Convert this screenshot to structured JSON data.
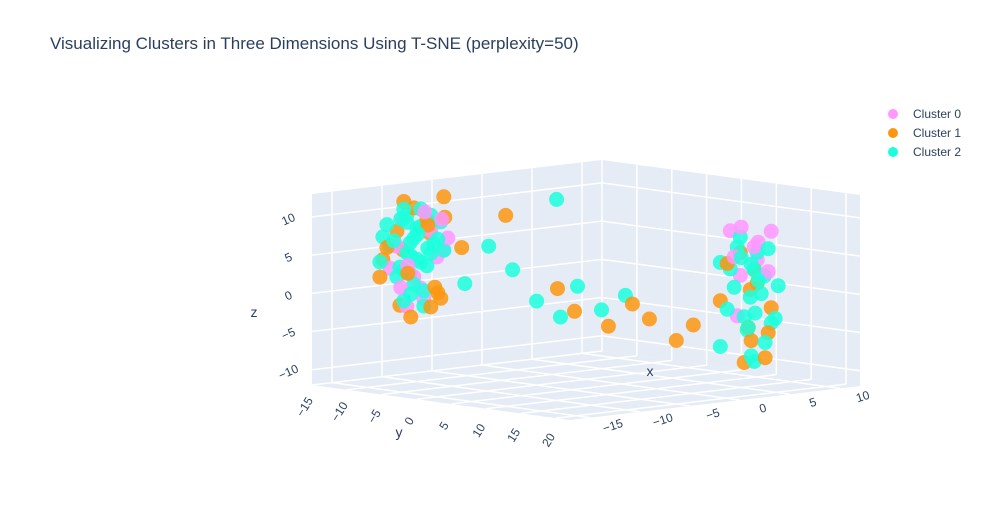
{
  "chart_data": {
    "type": "scatter",
    "projection": "3d",
    "title": "Visualizing Clusters in Three Dimensions Using T-SNE (perplexity=50)",
    "xlabel": "x",
    "ylabel": "y",
    "zlabel": "z",
    "x_ticks": [
      "−15",
      "−10",
      "−5",
      "0",
      "5",
      "10"
    ],
    "y_ticks": [
      "−15",
      "−10",
      "−5",
      "0",
      "5",
      "10",
      "15",
      "20"
    ],
    "z_ticks": [
      "−10",
      "−5",
      "0",
      "5",
      "10"
    ],
    "xlim": [
      -17,
      12
    ],
    "ylim": [
      -15,
      22
    ],
    "zlim": [
      -12,
      13
    ],
    "grid": true,
    "legend_position": "top-right",
    "series": [
      {
        "name": "Cluster 0",
        "color": "#ff97ff",
        "points": [
          [
            -12,
            -10,
            6
          ],
          [
            -11,
            -9,
            2
          ],
          [
            -10,
            -8,
            8
          ],
          [
            -13,
            -7,
            4
          ],
          [
            -9,
            -11,
            0
          ],
          [
            -12,
            -6,
            11
          ],
          [
            -11,
            -10,
            -2
          ],
          [
            -8,
            -9,
            5
          ],
          [
            -10,
            -12,
            9
          ],
          [
            -13,
            -8,
            1
          ],
          [
            -9,
            -7,
            7
          ],
          [
            -12,
            -11,
            3
          ],
          [
            -11,
            -5,
            10
          ],
          [
            -10,
            -9,
            -1
          ],
          [
            -8,
            -10,
            4
          ],
          [
            6,
            12,
            8
          ],
          [
            7,
            14,
            6
          ],
          [
            5,
            15,
            9
          ],
          [
            8,
            13,
            4
          ],
          [
            6,
            16,
            7
          ],
          [
            7,
            12,
            2
          ],
          [
            5,
            14,
            5
          ],
          [
            8,
            15,
            8
          ],
          [
            6,
            13,
            -3
          ],
          [
            7,
            16,
            3
          ]
        ]
      },
      {
        "name": "Cluster 1",
        "color": "#fc960f",
        "points": [
          [
            -12,
            -9,
            12
          ],
          [
            -11,
            -11,
            -2
          ],
          [
            -10,
            -6,
            10
          ],
          [
            -13,
            -10,
            6
          ],
          [
            -9,
            -8,
            -1
          ],
          [
            -12,
            -12,
            4
          ],
          [
            -10,
            -7,
            0
          ],
          [
            -11,
            -9,
            11
          ],
          [
            -8,
            -11,
            7
          ],
          [
            -13,
            -7,
            3
          ],
          [
            -9,
            -10,
            9
          ],
          [
            -12,
            -8,
            -3
          ],
          [
            -10,
            -12,
            5
          ],
          [
            -11,
            -6,
            1
          ],
          [
            -8,
            -9,
            12
          ],
          [
            -12,
            -10,
            8
          ],
          [
            -9,
            -5,
            6
          ],
          [
            -13,
            -11,
            2
          ],
          [
            -10,
            -8,
            -2
          ],
          [
            -11,
            -7,
            9
          ],
          [
            5,
            12,
            -1
          ],
          [
            7,
            14,
            3
          ],
          [
            6,
            15,
            -6
          ],
          [
            8,
            13,
            1
          ],
          [
            5,
            16,
            -4
          ],
          [
            7,
            12,
            5
          ],
          [
            6,
            17,
            -8
          ],
          [
            8,
            15,
            -2
          ],
          [
            5,
            13,
            4
          ],
          [
            7,
            16,
            -5
          ],
          [
            6,
            14,
            -9
          ],
          [
            8,
            12,
            0
          ],
          [
            -4,
            4,
            -2
          ],
          [
            -2,
            6,
            -4
          ],
          [
            0,
            9,
            -3
          ],
          [
            2,
            10,
            -6
          ],
          [
            -5,
            3,
            1
          ],
          [
            -1,
            8,
            -1
          ],
          [
            3,
            11,
            -4
          ],
          [
            -6,
            -3,
            10
          ]
        ]
      },
      {
        "name": "Cluster 2",
        "color": "#1cffdd",
        "points": [
          [
            -12,
            -9,
            11
          ],
          [
            -11,
            -10,
            9
          ],
          [
            -10,
            -8,
            10
          ],
          [
            -13,
            -9,
            7
          ],
          [
            -12,
            -8,
            5
          ],
          [
            -11,
            -11,
            3
          ],
          [
            -10,
            -10,
            8
          ],
          [
            -9,
            -9,
            6
          ],
          [
            -12,
            -10,
            2
          ],
          [
            -11,
            -8,
            4
          ],
          [
            -10,
            -9,
            0
          ],
          [
            -13,
            -10,
            9
          ],
          [
            -12,
            -11,
            6
          ],
          [
            -11,
            -9,
            1
          ],
          [
            -10,
            -7,
            7
          ],
          [
            -9,
            -10,
            3
          ],
          [
            -12,
            -7,
            8
          ],
          [
            -11,
            -10,
            5
          ],
          [
            -10,
            -11,
            2
          ],
          [
            -13,
            -8,
            10
          ],
          [
            -12,
            -9,
            -1
          ],
          [
            -11,
            -8,
            11
          ],
          [
            -10,
            -10,
            4
          ],
          [
            -9,
            -8,
            9
          ],
          [
            -12,
            -12,
            7
          ],
          [
            -11,
            -7,
            6
          ],
          [
            -10,
            -9,
            -2
          ],
          [
            -13,
            -11,
            4
          ],
          [
            -9,
            -11,
            8
          ],
          [
            -8,
            -9,
            5
          ],
          [
            -12,
            -9,
            3
          ],
          [
            -11,
            -9,
            7
          ],
          [
            -10,
            -8,
            5
          ],
          [
            -11,
            -10,
            10
          ],
          [
            -12,
            -8,
            0
          ],
          [
            -10,
            -11,
            6
          ],
          [
            -7,
            -4,
            6
          ],
          [
            -5,
            0,
            -1
          ],
          [
            -3,
            3,
            1
          ],
          [
            -2,
            5,
            -2
          ],
          [
            -6,
            -2,
            3
          ],
          [
            -4,
            2,
            -3
          ],
          [
            -1,
            7,
            0
          ],
          [
            -8,
            -6,
            1
          ],
          [
            5,
            12,
            4
          ],
          [
            6,
            13,
            6
          ],
          [
            7,
            14,
            3
          ],
          [
            5,
            15,
            5
          ],
          [
            6,
            16,
            2
          ],
          [
            7,
            12,
            7
          ],
          [
            8,
            13,
            5
          ],
          [
            5,
            14,
            1
          ],
          [
            6,
            15,
            4
          ],
          [
            7,
            16,
            6
          ],
          [
            8,
            14,
            2
          ],
          [
            6,
            12,
            3
          ],
          [
            5,
            13,
            -2
          ],
          [
            7,
            15,
            0
          ],
          [
            6,
            14,
            -3
          ],
          [
            8,
            16,
            1
          ],
          [
            5,
            16,
            -4
          ],
          [
            7,
            13,
            -5
          ],
          [
            6,
            17,
            -6
          ],
          [
            8,
            12,
            -1
          ],
          [
            5,
            12,
            -7
          ],
          [
            7,
            17,
            -3
          ],
          [
            6,
            15,
            -8
          ],
          [
            8,
            15,
            -4
          ],
          [
            7,
            14,
            -9
          ],
          [
            5,
            17,
            -2
          ],
          [
            -3,
            0,
            12
          ]
        ]
      }
    ]
  }
}
